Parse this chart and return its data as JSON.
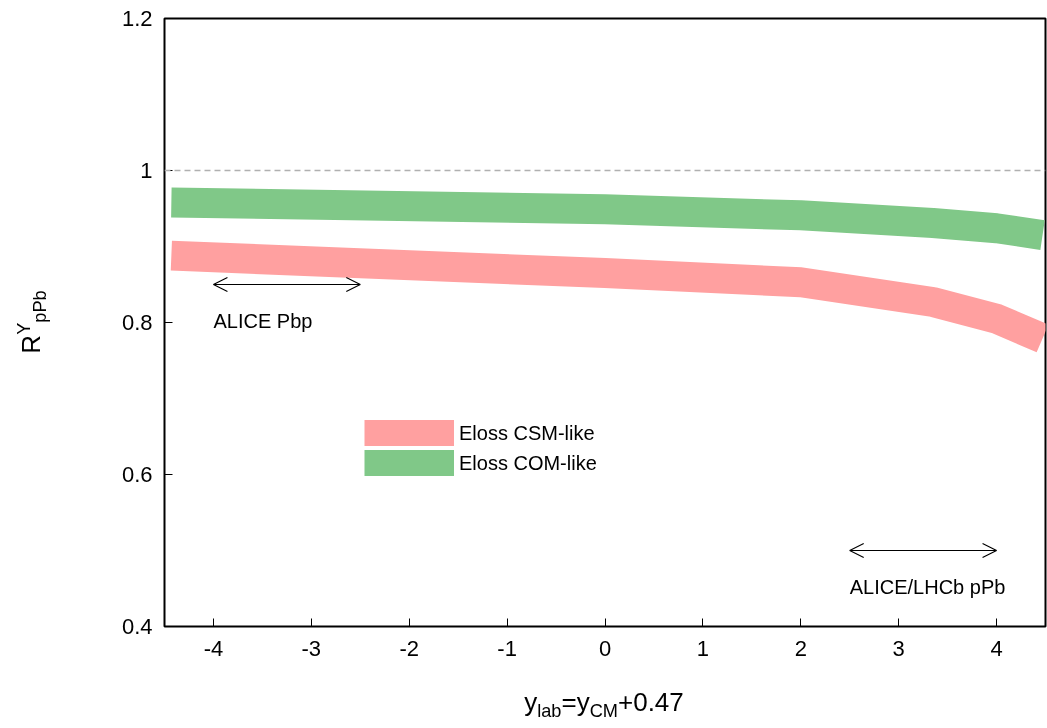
{
  "chart_data": {
    "type": "line",
    "xlabel": "y$_{lab}$=y$_{CM}$+0.47",
    "ylabel": "R$^{Υ}$$_{pPb}$",
    "x": [
      -4.43,
      0.0,
      2.0,
      3.35,
      4.0,
      4.47
    ],
    "series": [
      {
        "name": "Eloss CSM-like",
        "color": "#ffa0a0",
        "values": [
          0.888,
          0.865,
          0.853,
          0.827,
          0.805,
          0.779
        ]
      },
      {
        "name": "Eloss COM-like",
        "color": "#80c888",
        "values": [
          0.958,
          0.949,
          0.941,
          0.931,
          0.924,
          0.915
        ]
      }
    ],
    "xlim": [
      -4.5,
      4.5
    ],
    "xticks": [
      -4,
      -3,
      -2,
      -1,
      0,
      1,
      2,
      3,
      4
    ],
    "ylim": [
      0.4,
      1.2
    ],
    "yticks": [
      0.4,
      0.6,
      0.8,
      1,
      1.2
    ],
    "ref_lines": [
      {
        "axis": "y",
        "value": 1,
        "label": null,
        "color": "#b0b0b0",
        "line_style": "dashed"
      }
    ],
    "annotations": [
      "ALICE Pbp",
      "ALICE/LHCb pPb"
    ],
    "legend": "center",
    "grid": false
  }
}
